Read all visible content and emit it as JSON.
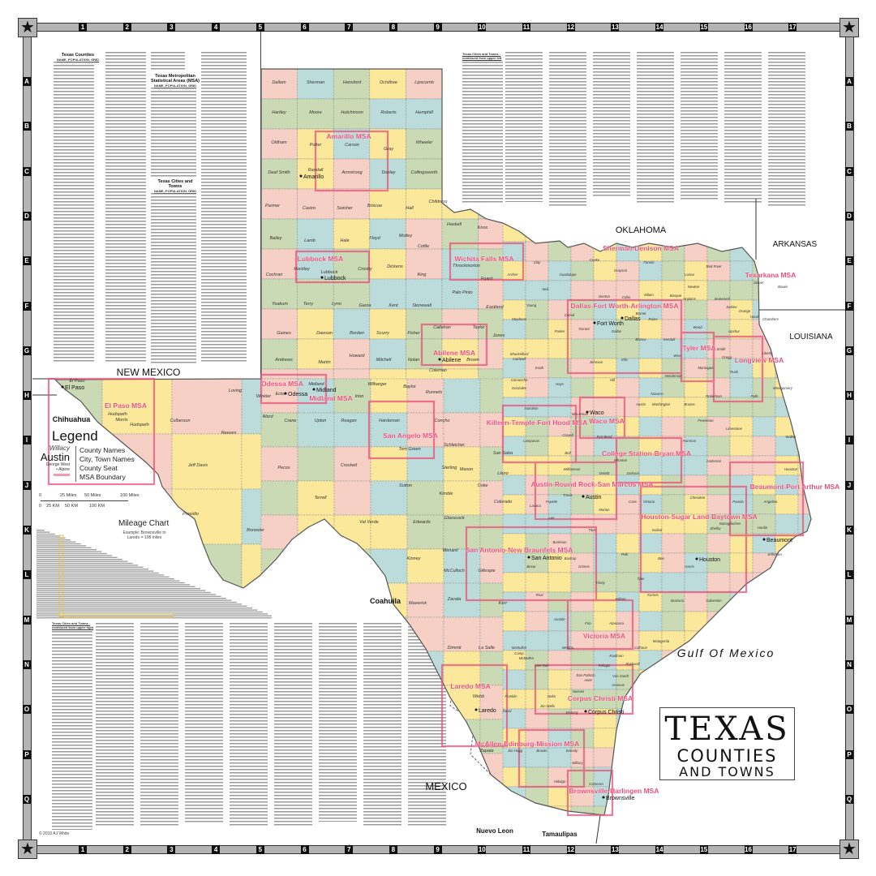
{
  "frame": {
    "columns": [
      "1",
      "2",
      "3",
      "4",
      "5",
      "6",
      "7",
      "8",
      "9",
      "10",
      "11",
      "12",
      "13",
      "14",
      "15",
      "16",
      "17"
    ],
    "rows": [
      "A",
      "B",
      "C",
      "D",
      "E",
      "F",
      "G",
      "H",
      "I",
      "J",
      "K",
      "L",
      "M",
      "N",
      "O",
      "P",
      "Q"
    ],
    "corner_icon": "star-icon"
  },
  "index": {
    "counties_title": "Texas Counties",
    "counties_subtitle": "NAME, POPULATION, GRID",
    "msa_title": "Texas Metropolitan Statistical Areas (MSA)",
    "msa_subtitle": "NAME, POPULATION, GRID",
    "cities_title": "Texas Cities and Towns",
    "cities_subtitle": "NAME, POPULATION, GRID",
    "continued_upper_left": "Texas Cities and Towns - continued from upper left",
    "continued_upper_right": "Texas Cities and Towns - continued from upper right"
  },
  "legend": {
    "title": "Legend",
    "county_sample": "Willacy",
    "city_sample": "Austin",
    "town_sample": "George West",
    "seat_sample": "Alpine",
    "county_label": "County Names",
    "city_label": "City, Town Names",
    "seat_label": "County Seat",
    "msa_label": "MSA Boundary"
  },
  "scale": {
    "miles": [
      "0",
      "25 Miles",
      "50 Miles",
      "100 Miles"
    ],
    "km": [
      "0",
      "25 KM",
      "50 KM",
      "100 KM"
    ]
  },
  "mileage_chart": {
    "title": "Mileage Chart",
    "example": "Example: Brownsville to Laredo = 198 miles"
  },
  "map": {
    "palette": [
      "#f6d0c4",
      "#fbe89a",
      "#c9dab4",
      "#bcdcdc"
    ],
    "msa_color": "#e8507a",
    "border_color": "#555555",
    "neighbors": [
      {
        "name": "NEW MEXICO",
        "style": "serif"
      },
      {
        "name": "OKLAHOMA",
        "style": "serif"
      },
      {
        "name": "ARKANSAS",
        "style": "serif"
      },
      {
        "name": "LOUISIANA",
        "style": "serif"
      },
      {
        "name": "Chihuahua",
        "style": "serif-bold"
      },
      {
        "name": "Coahuila",
        "style": "serif-bold"
      },
      {
        "name": "MEXICO",
        "style": "serif"
      },
      {
        "name": "Nuevo Leon",
        "style": "serif-bold"
      },
      {
        "name": "Tamaulipas",
        "style": "serif-bold"
      },
      {
        "name": "Gulf Of Mexico",
        "style": "serif-italic"
      }
    ],
    "counties": [
      "Dallam",
      "Sherman",
      "Hansford",
      "Ochiltree",
      "Lipscomb",
      "Hartley",
      "Moore",
      "Hutchinson",
      "Roberts",
      "Hemphill",
      "Oldham",
      "Potter",
      "Carson",
      "Gray",
      "Wheeler",
      "Deaf Smith",
      "Randall",
      "Armstrong",
      "Donley",
      "Collingsworth",
      "Parmer",
      "Castro",
      "Swisher",
      "Briscoe",
      "Hall",
      "Childress",
      "Bailey",
      "Lamb",
      "Hale",
      "Floyd",
      "Motley",
      "Cottle",
      "Cochran",
      "Hockley",
      "Lubbock",
      "Crosby",
      "Dickens",
      "King",
      "Yoakum",
      "Terry",
      "Lynn",
      "Garza",
      "Kent",
      "Stonewall",
      "Gaines",
      "Dawson",
      "Borden",
      "Scurry",
      "Fisher",
      "Andrews",
      "Martin",
      "Howard",
      "Mitchell",
      "Nolan",
      "El Paso",
      "Hudspeth",
      "Culberson",
      "Loving",
      "Winkler",
      "Ector",
      "Midland",
      "Reeves",
      "Ward",
      "Crane",
      "Upton",
      "Reagan",
      "Jeff Davis",
      "Pecos",
      "Presidio",
      "Brewster",
      "Terrell",
      "Crockett",
      "Val Verde",
      "Sutton",
      "Edwards",
      "Kinney",
      "Maverick",
      "Zavala",
      "Dimmit",
      "Webb",
      "Zapata",
      "Jim Hogg",
      "Brooks",
      "Kenedy",
      "Hidalgo",
      "Cameron",
      "Willacy",
      "Kleberg",
      "Nueces",
      "La Salle",
      "McMullen",
      "Live Oak",
      "Bexar",
      "Travis",
      "Williamson",
      "Bell",
      "McLennan",
      "Harris",
      "Galveston",
      "Brazoria",
      "Matagorda",
      "Jefferson",
      "Hardin",
      "Dallas",
      "Tarrant",
      "Denton",
      "Collin",
      "Smith",
      "Jack",
      "Young",
      "Archer",
      "Clay",
      "Cooke",
      "Grayson",
      "Fannin",
      "Lamar",
      "Red River",
      "Bowie",
      "Hopkins",
      "Wood",
      "Upshur",
      "Rusk",
      "Henderson",
      "Navarro",
      "Hill",
      "Ellis",
      "Johnson",
      "Parker",
      "Erath",
      "Comanche",
      "Hamilton",
      "Coryell",
      "Lampasas",
      "San Saba",
      "Llano",
      "Mason",
      "Kimble",
      "Schleicher",
      "Tom Green",
      "Concho",
      "Runnels",
      "Coleman",
      "Brown",
      "Callahan",
      "Taylor",
      "Jones",
      "Shackelford",
      "Stephens",
      "Eastland",
      "Palo Pinto",
      "Throckmorton",
      "Haskell",
      "Knox",
      "Foard",
      "Hardeman",
      "Wilbarger",
      "Baylor",
      "Irion",
      "Sterling",
      "Coke",
      "Glasscock",
      "Menard",
      "McCulloch",
      "Gillespie",
      "Kerr",
      "Real",
      "Uvalde",
      "Medina",
      "Frio",
      "Atascosa",
      "Wilson",
      "Karnes",
      "Bee",
      "Goliad",
      "Victoria",
      "Jackson",
      "Wharton",
      "Fort Bend",
      "Austin",
      "Washington",
      "Brazos",
      "Robertson",
      "Falls",
      "Limestone",
      "Freestone",
      "Anderson",
      "Cherokee",
      "Nacogdoches",
      "Angelina",
      "Houston",
      "Walker",
      "Montgomery",
      "Liberty",
      "Chambers",
      "Orange",
      "Jasper",
      "Newton",
      "Sabine",
      "Shelby",
      "Panola",
      "Harrison",
      "Cass",
      "Marion",
      "Titus",
      "Polk",
      "Tyler",
      "Trinity",
      "Grimes",
      "Burleson",
      "Lee",
      "Bastrop",
      "Fayette",
      "Colorado",
      "Lavaca",
      "DeWitt",
      "Gonzales",
      "Caldwell",
      "Hays",
      "Comal",
      "Guadalupe",
      "Blanco",
      "Kendall",
      "Burnet",
      "Milam",
      "Bosque",
      "Somervell",
      "Hood",
      "Wise",
      "Montague",
      "Kaufman",
      "Van Zandt",
      "Rockwall",
      "Hunt",
      "Delta",
      "Franklin",
      "Camp",
      "Morris",
      "Rains",
      "Gregg",
      "Calhoun",
      "Refugio",
      "Aransas",
      "San Patricio",
      "Jim Wells",
      "Duval",
      "McMullen",
      "Hudspeth"
    ],
    "msas": [
      "Amarillo MSA",
      "Lubbock MSA",
      "Wichita Falls MSA",
      "Sherman-Denison MSA",
      "Texarkana MSA",
      "Dallas-Fort Worth-Arlington MSA",
      "Tyler MSA",
      "Longview MSA",
      "Abilene MSA",
      "Odessa MSA",
      "Midland MSA",
      "El Paso MSA",
      "San Angelo MSA",
      "Killeen-Temple-Fort Hood MSA",
      "Waco MSA",
      "College Station-Bryan MSA",
      "Beaumont-Port Arthur MSA",
      "Austin-Round Rock-San Marcos MSA",
      "Houston-Sugar Land-Baytown MSA",
      "San Antonio-New Braunfels MSA",
      "Victoria MSA",
      "Corpus Christi MSA",
      "Laredo MSA",
      "McAllen-Edinburg-Mission MSA",
      "Brownsville-Harlingen MSA"
    ],
    "cities": [
      "Amarillo",
      "Lubbock",
      "El Paso",
      "Dallas",
      "Fort Worth",
      "Austin",
      "Houston",
      "San Antonio",
      "Corpus Christi",
      "Laredo",
      "Beaumont",
      "Waco",
      "Odessa",
      "Midland",
      "Abilene",
      "Brownsville"
    ]
  },
  "title": {
    "line1": "TEXAS",
    "line2": "COUNTIES",
    "line3": "AND TOWNS"
  },
  "copyright": "© 2010 AJ White"
}
